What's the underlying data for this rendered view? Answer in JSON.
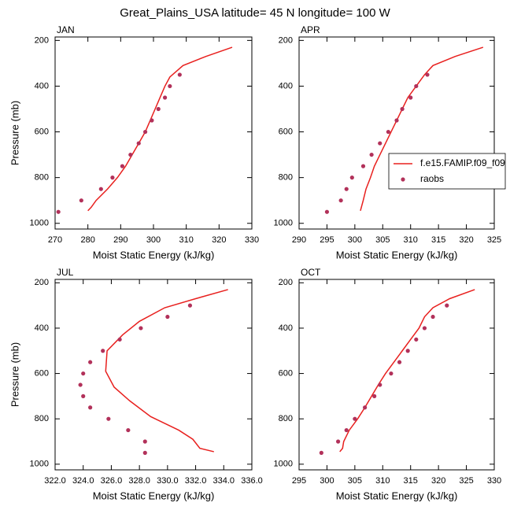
{
  "title": "Great_Plains_USA  latitude= 45 N longitude= 100 W",
  "chart_data": [
    {
      "type": "line",
      "title": "JAN",
      "xlabel": "Moist Static Energy (kJ/kg)",
      "ylabel": "Pressure (mb)",
      "xlim": [
        270,
        330
      ],
      "xticks": [
        270,
        280,
        290,
        300,
        310,
        320,
        330
      ],
      "ylim": [
        1025,
        185
      ],
      "yticks": [
        200,
        400,
        600,
        800,
        1000
      ],
      "series": [
        {
          "type": "line",
          "color": "#e8201e",
          "x": [
            324,
            316,
            309,
            305,
            303.5,
            302,
            300.5,
            299,
            297.5,
            295.5,
            293.5,
            291.5,
            289,
            286,
            282.5,
            281,
            280
          ],
          "values": [
            230,
            270,
            310,
            360,
            400,
            450,
            500,
            550,
            600,
            650,
            700,
            750,
            800,
            850,
            900,
            930,
            945
          ]
        },
        {
          "type": "scatter",
          "color": "#b2315a",
          "x": [
            308,
            305,
            303.5,
            301.5,
            299.5,
            297.5,
            295.5,
            293,
            290.5,
            287.5,
            284,
            278,
            271
          ],
          "values": [
            350,
            400,
            450,
            500,
            550,
            600,
            650,
            700,
            750,
            800,
            850,
            900,
            950
          ]
        }
      ]
    },
    {
      "type": "line",
      "title": "APR",
      "xlabel": "Moist Static Energy (kJ/kg)",
      "legend": "right",
      "xlim": [
        290,
        325
      ],
      "xticks": [
        290,
        295,
        300,
        305,
        310,
        315,
        320,
        325
      ],
      "ylim": [
        1025,
        185
      ],
      "yticks": [
        200,
        400,
        600,
        800,
        1000
      ],
      "series": [
        {
          "name": "f.e15.FAMIP.f09_f09",
          "type": "line",
          "color": "#e8201e",
          "x": [
            323,
            318,
            314,
            312.5,
            311,
            309.5,
            308.5,
            307.5,
            306.5,
            305.5,
            304.5,
            303.5,
            302.8,
            302,
            301.5,
            301
          ],
          "values": [
            230,
            270,
            310,
            350,
            400,
            450,
            500,
            550,
            600,
            650,
            700,
            750,
            800,
            850,
            900,
            945
          ]
        },
        {
          "name": "raobs",
          "type": "scatter",
          "color": "#b2315a",
          "x": [
            313,
            311,
            310,
            308.5,
            307.5,
            306,
            304.5,
            303,
            301.5,
            299.5,
            298.5,
            297.5,
            295
          ],
          "values": [
            350,
            400,
            450,
            500,
            550,
            600,
            650,
            700,
            750,
            800,
            850,
            900,
            950
          ]
        }
      ]
    },
    {
      "type": "line",
      "title": "JUL",
      "xlabel": "Moist Static Energy (kJ/kg)",
      "ylabel": "Pressure (mb)",
      "xlim": [
        322,
        336
      ],
      "xticks": [
        {
          "value": 322,
          "label": "322.0"
        },
        {
          "value": 324,
          "label": "324.0"
        },
        {
          "value": 326,
          "label": "326.0"
        },
        {
          "value": 328,
          "label": "328.0"
        },
        {
          "value": 330,
          "label": "330.0"
        },
        {
          "value": 332,
          "label": "332.0"
        },
        {
          "value": 334,
          "label": "334.0"
        },
        {
          "value": 336,
          "label": "336.0"
        }
      ],
      "ylim": [
        1025,
        185
      ],
      "yticks": [
        200,
        400,
        600,
        800,
        1000
      ],
      "series": [
        {
          "type": "line",
          "color": "#e8201e",
          "x": [
            334.3,
            332,
            329.8,
            328,
            326.8,
            325.7,
            325.6,
            326.2,
            327.3,
            328.8,
            329.8,
            330.8,
            331.8,
            332.3,
            333.3
          ],
          "values": [
            230,
            270,
            310,
            370,
            430,
            500,
            590,
            660,
            720,
            790,
            820,
            850,
            890,
            930,
            945
          ]
        },
        {
          "type": "scatter",
          "color": "#b2315a",
          "x": [
            331.6,
            330,
            328.1,
            326.6,
            325.4,
            324.5,
            324,
            323.8,
            324,
            324.5,
            325.8,
            327.2,
            328.4,
            328.4
          ],
          "values": [
            300,
            350,
            400,
            450,
            500,
            550,
            600,
            650,
            700,
            750,
            800,
            850,
            900,
            950
          ]
        }
      ]
    },
    {
      "type": "line",
      "title": "OCT",
      "xlabel": "Moist Static Energy (kJ/kg)",
      "xlim": [
        295,
        330
      ],
      "xticks": [
        295,
        300,
        305,
        310,
        315,
        320,
        325,
        330
      ],
      "ylim": [
        1025,
        185
      ],
      "yticks": [
        200,
        400,
        600,
        800,
        1000
      ],
      "series": [
        {
          "type": "line",
          "color": "#e8201e",
          "x": [
            326.5,
            322,
            319,
            317.5,
            316.5,
            315,
            313.5,
            312,
            310.5,
            309.2,
            308,
            306.8,
            305.5,
            304,
            303,
            302.8,
            302.3
          ],
          "values": [
            230,
            270,
            310,
            350,
            400,
            450,
            500,
            550,
            600,
            650,
            700,
            750,
            800,
            850,
            900,
            930,
            945
          ]
        },
        {
          "type": "scatter",
          "color": "#b2315a",
          "x": [
            321.5,
            319,
            317.5,
            316,
            314.5,
            313,
            311.5,
            309.5,
            308.5,
            306.8,
            305,
            303.5,
            302,
            299
          ],
          "values": [
            300,
            350,
            400,
            450,
            500,
            550,
            600,
            650,
            700,
            750,
            800,
            850,
            900,
            950
          ]
        }
      ]
    }
  ]
}
